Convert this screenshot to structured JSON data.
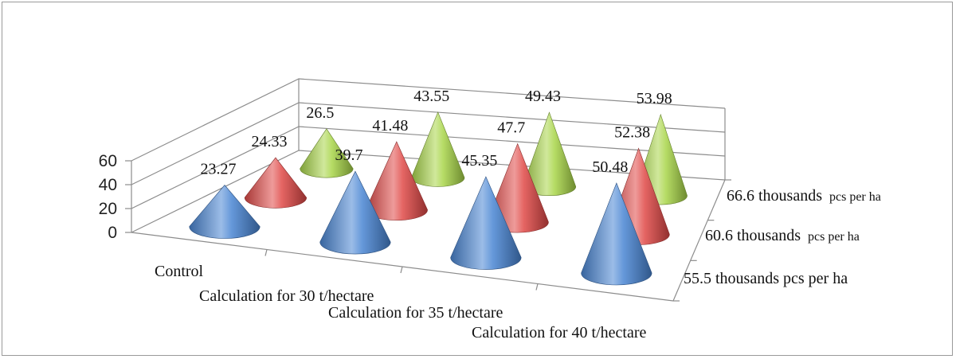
{
  "chart_data": {
    "type": "bar",
    "style": "3d-cone",
    "categories": [
      "Control",
      "Calculation for 30 t/hectare",
      "Calculation for 35 t/hectare",
      "Calculation for 40 t/hectare"
    ],
    "series": [
      {
        "name_main": "55.5 thousands",
        "name_unit": "pcs per ha",
        "values": [
          23.27,
          39.7,
          45.35,
          50.48
        ],
        "color": "#4a86d4"
      },
      {
        "name_main": "60.6 thousands",
        "name_unit": "pcs per ha",
        "values": [
          24.33,
          41.48,
          47.7,
          52.38
        ],
        "color": "#e04a48"
      },
      {
        "name_main": "66.6 thousands",
        "name_unit": "pcs per ha",
        "values": [
          26.5,
          43.55,
          49.43,
          53.98
        ],
        "color": "#a9d64a"
      }
    ],
    "yticks": [
      0,
      20,
      40,
      60
    ],
    "ylim": [
      0,
      60
    ],
    "grid": true
  }
}
